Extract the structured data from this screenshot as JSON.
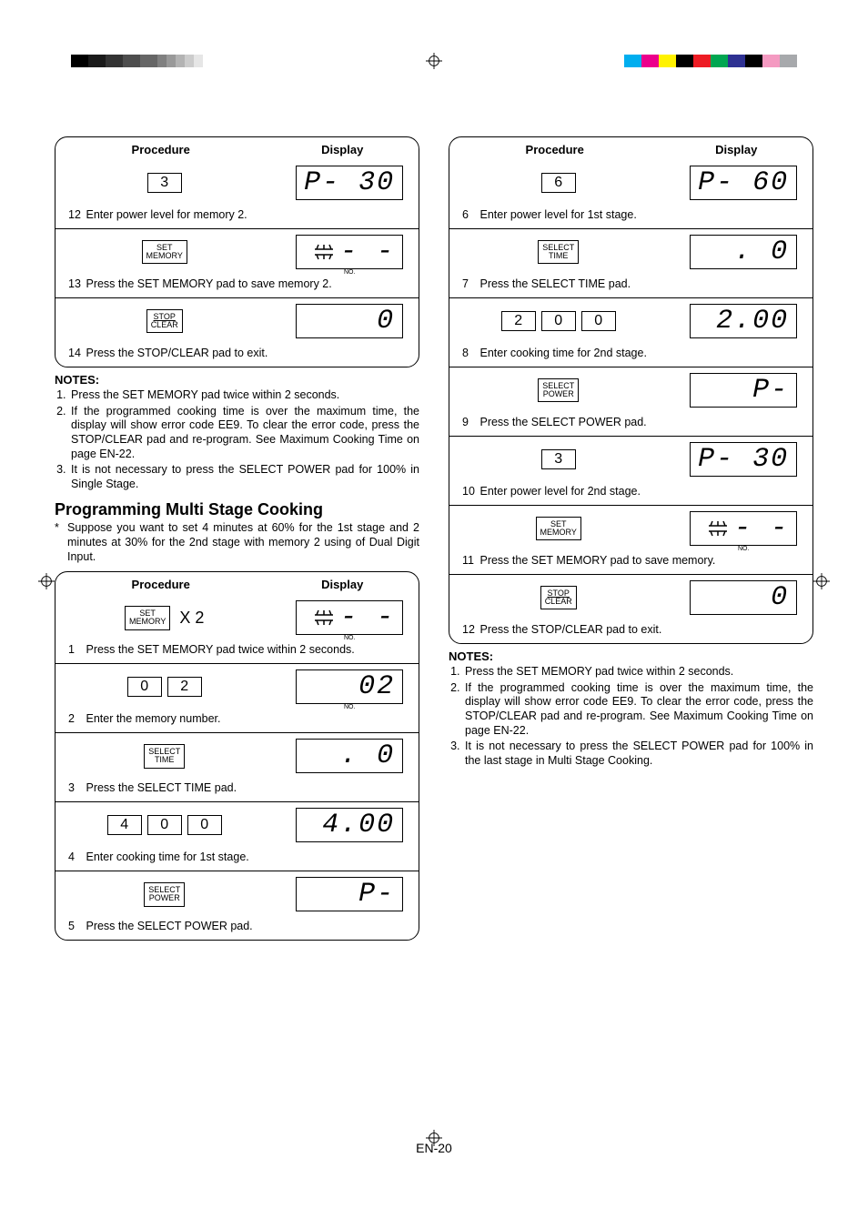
{
  "page_number": "EN-20",
  "color_bars_left": [
    "#000000",
    "#1a1a1a",
    "#333333",
    "#4d4d4d",
    "#666666",
    "#808080",
    "#999999",
    "#b3b3b3",
    "#cccccc",
    "#e6e6e6"
  ],
  "color_bars_right": [
    "#00aeef",
    "#ec008c",
    "#fff200",
    "#000000",
    "#ed1c24",
    "#00a651",
    "#2e3192",
    "#000000",
    "#f49ac1",
    "#a7a9ac"
  ],
  "headers": {
    "procedure": "Procedure",
    "display": "Display"
  },
  "labels": {
    "set_memory_1": "SET",
    "set_memory_2": "MEMORY",
    "stop_1": "STOP",
    "stop_2": "CLEAR",
    "select_time_1": "SELECT",
    "select_time_2": "TIME",
    "select_power_1": "SELECT",
    "select_power_2": "POWER",
    "no": "NO.",
    "x2": "X 2"
  },
  "top_left_box": {
    "steps": [
      {
        "num": "12",
        "keys": [
          "3"
        ],
        "display": "P- 30",
        "caption": "Enter power level for memory 2."
      },
      {
        "num": "13",
        "pad": "set_memory",
        "display_icon": true,
        "caption": "Press the SET MEMORY pad to save memory 2."
      },
      {
        "num": "14",
        "pad": "stop_clear",
        "display": "0",
        "caption": "Press the STOP/CLEAR pad to exit."
      }
    ]
  },
  "notes_heading": "NOTES:",
  "notes1": [
    "Press the SET MEMORY pad twice within 2 seconds.",
    "If the programmed cooking time is over the maximum time, the display will show error code EE9. To clear the error code, press the STOP/CLEAR pad and re-program. See Maximum Cooking Time on page EN-22.",
    "It is not necessary to press the SELECT POWER pad for 100% in Single Stage."
  ],
  "section_title": "Programming Multi Stage Cooking",
  "section_intro": "Suppose you want to set 4 minutes at 60% for the 1st stage and 2 minutes at 30% for the 2nd stage with memory 2 using of Dual Digit Input.",
  "bottom_left_box": {
    "steps": [
      {
        "num": "1",
        "pad": "set_memory",
        "x2": true,
        "display_icon": true,
        "caption": "Press the SET MEMORY pad twice within 2 seconds."
      },
      {
        "num": "2",
        "keys": [
          "0",
          "2"
        ],
        "display": "02",
        "no_label": true,
        "caption": "Enter the memory number."
      },
      {
        "num": "3",
        "pad": "select_time",
        "display": ". 0",
        "caption": "Press the SELECT TIME pad."
      },
      {
        "num": "4",
        "keys": [
          "4",
          "0",
          "0"
        ],
        "display": "4.00",
        "caption": "Enter cooking time for 1st stage."
      },
      {
        "num": "5",
        "pad": "select_power",
        "display": "P-",
        "caption": "Press the SELECT POWER pad."
      }
    ]
  },
  "right_box": {
    "steps": [
      {
        "num": "6",
        "keys": [
          "6"
        ],
        "display": "P- 60",
        "caption": "Enter power level for 1st stage."
      },
      {
        "num": "7",
        "pad": "select_time",
        "display": ". 0",
        "caption": "Press the SELECT TIME pad."
      },
      {
        "num": "8",
        "keys": [
          "2",
          "0",
          "0"
        ],
        "display": "2.00",
        "caption": "Enter cooking time for 2nd stage."
      },
      {
        "num": "9",
        "pad": "select_power",
        "display": "P-",
        "caption": "Press the SELECT POWER pad."
      },
      {
        "num": "10",
        "keys": [
          "3"
        ],
        "display": "P- 30",
        "caption": "Enter power level for 2nd stage."
      },
      {
        "num": "11",
        "pad": "set_memory",
        "display_icon": true,
        "caption": "Press the SET MEMORY pad to save memory."
      },
      {
        "num": "12",
        "pad": "stop_clear",
        "display": "0",
        "caption": "Press the STOP/CLEAR pad to exit."
      }
    ]
  },
  "notes2": [
    "Press the SET MEMORY pad twice within 2 seconds.",
    "If the programmed cooking time is over the maximum time, the display will show error code EE9. To clear the error code, press the STOP/CLEAR pad and re-program. See Maximum Cooking Time on page EN-22.",
    "It is not necessary to press the SELECT POWER pad for 100% in the last stage in Multi Stage Cooking."
  ]
}
